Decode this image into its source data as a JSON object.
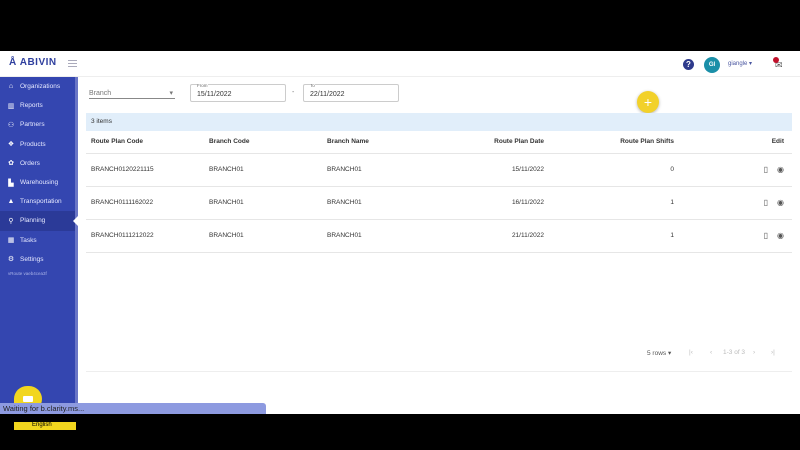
{
  "header": {
    "logo": "ABIVIN",
    "help_icon": "question-circle-icon",
    "avatar_initials": "GI",
    "username": "giangle",
    "notification_count": ""
  },
  "sidebar": {
    "items": [
      {
        "label": "Organizations",
        "icon": "home-icon"
      },
      {
        "label": "Reports",
        "icon": "chart-icon"
      },
      {
        "label": "Partners",
        "icon": "users-icon"
      },
      {
        "label": "Products",
        "icon": "box-icon"
      },
      {
        "label": "Orders",
        "icon": "orders-icon"
      },
      {
        "label": "Warehousing",
        "icon": "warehouse-icon"
      },
      {
        "label": "Transportation",
        "icon": "road-icon"
      },
      {
        "label": "Planning",
        "icon": "planning-icon",
        "active": true
      },
      {
        "label": "Tasks",
        "icon": "calendar-icon"
      },
      {
        "label": "Settings",
        "icon": "gear-icon"
      }
    ],
    "version": "vRoute vaeb4cea3f",
    "language": "English"
  },
  "filters": {
    "branch_placeholder": "Branch",
    "from_label": "From",
    "from_value": "15/11/2022",
    "to_label": "To",
    "to_value": "22/11/2022",
    "separator": "-"
  },
  "table": {
    "count": "3 items",
    "headers": [
      "Route Plan Code",
      "Branch Code",
      "Branch Name",
      "Route Plan Date",
      "Route Plan Shifts",
      "Edit"
    ],
    "rows": [
      [
        "BRANCH0120221115",
        "BRANCH01",
        "BRANCH01",
        "15/11/2022",
        "0"
      ],
      [
        "BRANCH0111162022",
        "BRANCH01",
        "BRANCH01",
        "16/11/2022",
        "1"
      ],
      [
        "BRANCH0111212022",
        "BRANCH01",
        "BRANCH01",
        "21/11/2022",
        "1"
      ]
    ]
  },
  "pagination": {
    "rows_per_page": "5 rows",
    "range": "1-3 of 3"
  },
  "status_bar": "Waiting for b.clarity.ms..."
}
